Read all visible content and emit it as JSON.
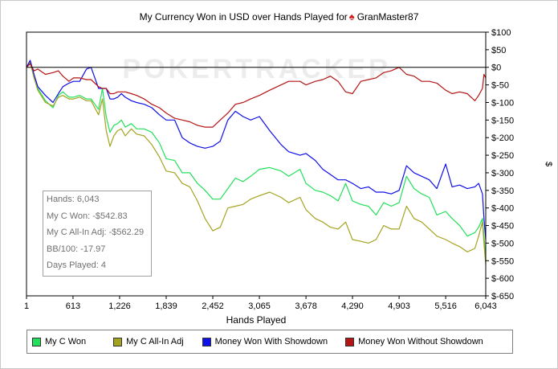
{
  "chart_data": {
    "type": "line",
    "title_prefix": "My Currency Won in USD over Hands Played for",
    "player_name": "GranMaster87",
    "xlabel": "Hands Played",
    "ylabel": "$",
    "xlim": [
      1,
      6043
    ],
    "ylim": [
      -650,
      100
    ],
    "x_ticks": [
      1,
      613,
      1226,
      1839,
      2452,
      3065,
      3678,
      4290,
      4903,
      5516,
      6043
    ],
    "x_tick_labels": [
      "1",
      "613",
      "1,226",
      "1,839",
      "2,452",
      "3,065",
      "3,678",
      "4,290",
      "4,903",
      "5,516",
      "6,043"
    ],
    "y_ticks": [
      100,
      50,
      0,
      -50,
      -100,
      -150,
      -200,
      -250,
      -300,
      -350,
      -400,
      -450,
      -500,
      -550,
      -600,
      -650
    ],
    "y_tick_labels": [
      "$100",
      "$50",
      "$0",
      "$-50",
      "$-100",
      "$-150",
      "$-200",
      "$-250",
      "$-300",
      "$-350",
      "$-400",
      "$-450",
      "$-500",
      "$-550",
      "$-600",
      "$-650"
    ],
    "watermark": "POKERTRACKER",
    "grid": false,
    "legend_position": "bottom",
    "series": [
      {
        "name": "My C Won",
        "color": "#22e05a",
        "x": [
          1,
          50,
          100,
          150,
          250,
          350,
          420,
          480,
          560,
          620,
          700,
          790,
          850,
          950,
          1000,
          1050,
          1100,
          1150,
          1200,
          1250,
          1300,
          1380,
          1450,
          1550,
          1650,
          1750,
          1839,
          1950,
          2050,
          2150,
          2250,
          2350,
          2452,
          2550,
          2650,
          2750,
          2850,
          2950,
          3065,
          3200,
          3350,
          3450,
          3600,
          3678,
          3800,
          3900,
          4000,
          4100,
          4200,
          4290,
          4400,
          4500,
          4600,
          4700,
          4800,
          4903,
          5000,
          5100,
          5200,
          5300,
          5400,
          5516,
          5600,
          5700,
          5800,
          5900,
          5950,
          6000,
          6020,
          6043
        ],
        "y": [
          0,
          15,
          -30,
          -60,
          -95,
          -115,
          -80,
          -70,
          -85,
          -85,
          -80,
          -90,
          -90,
          -120,
          -60,
          -140,
          -185,
          -165,
          -160,
          -150,
          -170,
          -160,
          -175,
          -175,
          -185,
          -215,
          -260,
          -265,
          -300,
          -300,
          -330,
          -350,
          -375,
          -375,
          -345,
          -315,
          -325,
          -310,
          -290,
          -285,
          -295,
          -310,
          -290,
          -330,
          -350,
          -355,
          -365,
          -380,
          -330,
          -380,
          -390,
          -395,
          -420,
          -385,
          -395,
          -385,
          -310,
          -345,
          -360,
          -370,
          -420,
          -410,
          -430,
          -450,
          -480,
          -470,
          -455,
          -430,
          -480,
          -543
        ]
      },
      {
        "name": "My C All-In Adj",
        "color": "#a3a320",
        "x": [
          1,
          50,
          100,
          150,
          250,
          350,
          420,
          480,
          560,
          620,
          700,
          790,
          850,
          950,
          1000,
          1050,
          1100,
          1150,
          1200,
          1250,
          1300,
          1380,
          1450,
          1550,
          1650,
          1750,
          1839,
          1950,
          2050,
          2150,
          2250,
          2350,
          2452,
          2550,
          2650,
          2750,
          2850,
          2950,
          3065,
          3200,
          3350,
          3450,
          3600,
          3678,
          3800,
          3900,
          4000,
          4100,
          4200,
          4290,
          4400,
          4500,
          4600,
          4700,
          4800,
          4903,
          5000,
          5100,
          5200,
          5300,
          5400,
          5516,
          5600,
          5700,
          5800,
          5900,
          5950,
          6000,
          6020,
          6043
        ],
        "y": [
          0,
          15,
          -30,
          -65,
          -100,
          -110,
          -85,
          -80,
          -90,
          -90,
          -85,
          -95,
          -95,
          -135,
          -90,
          -180,
          -225,
          -195,
          -180,
          -175,
          -195,
          -175,
          -190,
          -195,
          -220,
          -255,
          -295,
          -300,
          -330,
          -340,
          -380,
          -430,
          -465,
          -455,
          -400,
          -395,
          -390,
          -375,
          -365,
          -355,
          -370,
          -385,
          -370,
          -405,
          -430,
          -440,
          -455,
          -460,
          -440,
          -490,
          -495,
          -500,
          -490,
          -450,
          -460,
          -460,
          -395,
          -430,
          -440,
          -460,
          -480,
          -490,
          -500,
          -510,
          -525,
          -515,
          -480,
          -440,
          -500,
          -562
        ]
      },
      {
        "name": "Money Won With Showdown",
        "color": "#1010e8",
        "x": [
          1,
          50,
          100,
          150,
          250,
          350,
          420,
          480,
          560,
          620,
          700,
          790,
          850,
          950,
          1000,
          1050,
          1100,
          1150,
          1200,
          1250,
          1300,
          1380,
          1450,
          1550,
          1650,
          1750,
          1839,
          1950,
          2050,
          2150,
          2250,
          2350,
          2452,
          2550,
          2650,
          2750,
          2850,
          2950,
          3065,
          3200,
          3350,
          3450,
          3600,
          3678,
          3800,
          3900,
          4000,
          4100,
          4200,
          4290,
          4400,
          4500,
          4600,
          4700,
          4800,
          4903,
          5000,
          5100,
          5200,
          5300,
          5400,
          5516,
          5600,
          5700,
          5800,
          5900,
          5950,
          6000,
          6020,
          6043
        ],
        "y": [
          0,
          20,
          -20,
          -55,
          -80,
          -100,
          -75,
          -55,
          -45,
          -40,
          -40,
          -5,
          0,
          -60,
          -60,
          -60,
          -90,
          -90,
          -85,
          -75,
          -85,
          -95,
          -100,
          -105,
          -115,
          -135,
          -150,
          -150,
          -200,
          -215,
          -225,
          -230,
          -225,
          -210,
          -150,
          -125,
          -140,
          -150,
          -140,
          -180,
          -220,
          -240,
          -250,
          -245,
          -265,
          -290,
          -305,
          -320,
          -320,
          -330,
          -345,
          -340,
          -355,
          -355,
          -360,
          -350,
          -280,
          -300,
          -310,
          -320,
          -345,
          -275,
          -340,
          -335,
          -345,
          -340,
          -330,
          -360,
          -430,
          -490
        ]
      },
      {
        "name": "Money Won Without Showdown",
        "color": "#b41414",
        "x": [
          1,
          50,
          100,
          150,
          250,
          350,
          420,
          480,
          560,
          620,
          700,
          790,
          850,
          950,
          1000,
          1050,
          1100,
          1150,
          1200,
          1250,
          1300,
          1380,
          1450,
          1550,
          1650,
          1750,
          1839,
          1950,
          2050,
          2150,
          2250,
          2350,
          2452,
          2550,
          2650,
          2750,
          2850,
          2950,
          3065,
          3200,
          3350,
          3450,
          3600,
          3678,
          3800,
          3900,
          4000,
          4100,
          4200,
          4290,
          4400,
          4500,
          4600,
          4700,
          4800,
          4903,
          5000,
          5100,
          5200,
          5300,
          5400,
          5516,
          5600,
          5700,
          5800,
          5900,
          5950,
          6000,
          6020,
          6043
        ],
        "y": [
          0,
          10,
          -10,
          -5,
          -20,
          -15,
          -10,
          -25,
          -40,
          -30,
          -30,
          -35,
          -35,
          -55,
          -60,
          -60,
          -75,
          -75,
          -70,
          -70,
          -70,
          -75,
          -80,
          -90,
          -105,
          -115,
          -130,
          -145,
          -150,
          -155,
          -165,
          -170,
          -170,
          -150,
          -130,
          -105,
          -100,
          -90,
          -80,
          -65,
          -50,
          -40,
          -40,
          -50,
          -40,
          -35,
          -25,
          -40,
          -70,
          -75,
          -40,
          -35,
          -30,
          -15,
          -10,
          0,
          -20,
          -25,
          -40,
          -40,
          -45,
          -65,
          -75,
          -70,
          -75,
          -95,
          -80,
          -60,
          -20,
          -30
        ]
      }
    ]
  },
  "info_box": {
    "hands": "Hands: 6,043",
    "won": "My C Won: -$542.83",
    "allin": "My C All-In Adj: -$562.29",
    "bb100": "BB/100: -17.97",
    "days": "Days Played: 4"
  },
  "legend": {
    "items": [
      {
        "label": "My C Won",
        "color": "#22e05a"
      },
      {
        "label": "My C All-In Adj",
        "color": "#a3a320"
      },
      {
        "label": "Money Won With Showdown",
        "color": "#1010e8"
      },
      {
        "label": "Money Won Without Showdown",
        "color": "#b41414"
      }
    ]
  }
}
